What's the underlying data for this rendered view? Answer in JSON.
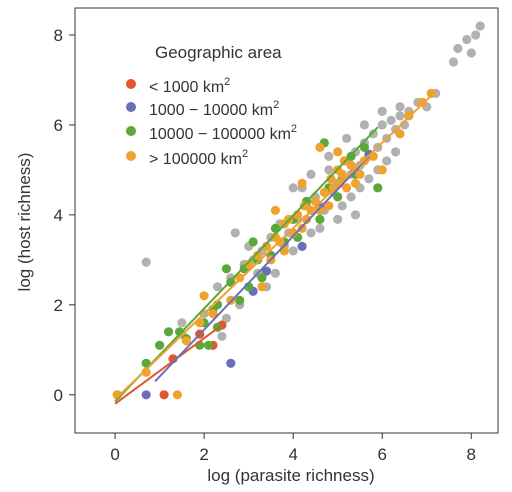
{
  "chart_data": {
    "type": "scatter",
    "xlabel": "log (parasite richness)",
    "ylabel": "log (host richness)",
    "xlim": [
      -0.9,
      8.6
    ],
    "ylim": [
      -0.85,
      8.6
    ],
    "xticks": [
      "0",
      "2",
      "4",
      "6",
      "8"
    ],
    "yticks": [
      "0",
      "2",
      "4",
      "6",
      "8"
    ],
    "grid": false,
    "legend": {
      "title": "Geographic area",
      "placement": "top-left",
      "entries": [
        {
          "label": "< 1000 km",
          "sup": "2",
          "color": "#e3562c"
        },
        {
          "label": "1000 − 10000 km",
          "sup": "2",
          "color": "#6b6fb8"
        },
        {
          "label": "10000 − 100000 km",
          "sup": "2",
          "color": "#5aa83a"
        },
        {
          "label": "> 100000 km",
          "sup": "2",
          "color": "#f0a22e"
        }
      ]
    },
    "series": [
      {
        "color": "#b1b1b1",
        "points": [
          [
            0.7,
            2.95
          ],
          [
            1.5,
            1.6
          ],
          [
            1.5,
            1.35
          ],
          [
            2.0,
            1.8
          ],
          [
            2.2,
            1.9
          ],
          [
            2.3,
            2.4
          ],
          [
            2.6,
            2.6
          ],
          [
            2.7,
            3.6
          ],
          [
            2.9,
            2.9
          ],
          [
            3.1,
            3.0
          ],
          [
            3.2,
            2.7
          ],
          [
            3.3,
            3.2
          ],
          [
            3.5,
            3.5
          ],
          [
            3.7,
            3.8
          ],
          [
            3.8,
            3.3
          ],
          [
            3.9,
            3.6
          ],
          [
            4.1,
            3.9
          ],
          [
            4.2,
            4.6
          ],
          [
            4.3,
            4.2
          ],
          [
            4.5,
            4.4
          ],
          [
            4.6,
            3.7
          ],
          [
            4.8,
            5.0
          ],
          [
            4.9,
            4.5
          ],
          [
            5.0,
            4.7
          ],
          [
            5.1,
            4.2
          ],
          [
            5.2,
            5.2
          ],
          [
            5.3,
            4.9
          ],
          [
            5.4,
            5.4
          ],
          [
            5.5,
            5.1
          ],
          [
            5.6,
            5.6
          ],
          [
            5.7,
            5.3
          ],
          [
            5.8,
            5.8
          ],
          [
            5.9,
            5.5
          ],
          [
            6.0,
            6.0
          ],
          [
            6.1,
            5.7
          ],
          [
            6.2,
            6.1
          ],
          [
            6.3,
            5.9
          ],
          [
            6.4,
            6.2
          ],
          [
            6.5,
            6.0
          ],
          [
            6.6,
            6.3
          ],
          [
            6.8,
            6.5
          ],
          [
            7.0,
            6.4
          ],
          [
            7.2,
            6.7
          ],
          [
            7.6,
            7.4
          ],
          [
            7.7,
            7.7
          ],
          [
            7.9,
            7.9
          ],
          [
            8.0,
            7.6
          ],
          [
            8.1,
            8.0
          ],
          [
            8.2,
            8.2
          ],
          [
            2.4,
            1.3
          ],
          [
            2.8,
            2.0
          ],
          [
            3.4,
            2.4
          ],
          [
            3.6,
            2.7
          ],
          [
            4.0,
            3.2
          ],
          [
            4.4,
            3.6
          ],
          [
            4.7,
            4.1
          ],
          [
            5.0,
            3.9
          ],
          [
            5.3,
            4.4
          ],
          [
            5.5,
            4.6
          ],
          [
            5.7,
            4.8
          ],
          [
            5.9,
            5.0
          ],
          [
            6.1,
            5.2
          ],
          [
            6.3,
            5.4
          ],
          [
            4.0,
            4.6
          ],
          [
            4.4,
            4.9
          ],
          [
            4.8,
            5.3
          ],
          [
            5.2,
            5.7
          ],
          [
            5.6,
            6.0
          ],
          [
            6.0,
            6.3
          ],
          [
            6.4,
            6.4
          ],
          [
            4.6,
            4.2
          ],
          [
            5.4,
            4.0
          ],
          [
            3.0,
            3.3
          ],
          [
            2.5,
            1.7
          ]
        ]
      },
      {
        "color": "#e3562c",
        "points": [
          [
            1.1,
            0.0
          ],
          [
            1.3,
            0.8
          ],
          [
            1.9,
            1.35
          ],
          [
            2.2,
            1.1
          ],
          [
            2.4,
            1.55
          ]
        ]
      },
      {
        "color": "#6b6fb8",
        "points": [
          [
            0.7,
            0.0
          ],
          [
            2.6,
            0.7
          ],
          [
            3.1,
            2.3
          ],
          [
            3.4,
            2.75
          ],
          [
            4.2,
            3.3
          ],
          [
            4.6,
            4.15
          ],
          [
            5.4,
            4.95
          ],
          [
            5.7,
            5.35
          ]
        ]
      },
      {
        "color": "#5aa83a",
        "points": [
          [
            0.05,
            0.0
          ],
          [
            0.7,
            0.7
          ],
          [
            1.0,
            1.1
          ],
          [
            1.45,
            1.4
          ],
          [
            1.6,
            1.25
          ],
          [
            1.9,
            1.1
          ],
          [
            2.0,
            1.6
          ],
          [
            2.1,
            1.1
          ],
          [
            2.2,
            1.9
          ],
          [
            2.3,
            1.5
          ],
          [
            2.5,
            2.8
          ],
          [
            2.6,
            2.5
          ],
          [
            2.8,
            2.1
          ],
          [
            2.9,
            2.8
          ],
          [
            3.0,
            2.4
          ],
          [
            3.1,
            3.4
          ],
          [
            3.2,
            3.0
          ],
          [
            3.3,
            2.6
          ],
          [
            3.5,
            3.1
          ],
          [
            3.6,
            3.7
          ],
          [
            3.8,
            3.4
          ],
          [
            4.0,
            3.9
          ],
          [
            4.1,
            3.5
          ],
          [
            4.3,
            4.3
          ],
          [
            4.6,
            3.9
          ],
          [
            4.7,
            5.6
          ],
          [
            4.8,
            4.6
          ],
          [
            5.0,
            4.4
          ],
          [
            5.1,
            4.8
          ],
          [
            5.3,
            5.3
          ],
          [
            5.4,
            4.9
          ],
          [
            5.6,
            5.5
          ],
          [
            5.9,
            4.6
          ],
          [
            2.3,
            2.0
          ],
          [
            1.2,
            1.4
          ]
        ]
      },
      {
        "color": "#f0a22e",
        "points": [
          [
            0.05,
            0.0
          ],
          [
            0.7,
            0.5
          ],
          [
            1.4,
            0.0
          ],
          [
            1.6,
            1.2
          ],
          [
            1.9,
            1.6
          ],
          [
            2.0,
            2.2
          ],
          [
            2.2,
            1.8
          ],
          [
            2.6,
            2.1
          ],
          [
            2.8,
            2.6
          ],
          [
            3.0,
            2.9
          ],
          [
            3.2,
            3.1
          ],
          [
            3.4,
            3.3
          ],
          [
            3.5,
            3.0
          ],
          [
            3.6,
            3.5
          ],
          [
            3.7,
            3.4
          ],
          [
            3.8,
            3.8
          ],
          [
            3.9,
            3.9
          ],
          [
            4.0,
            3.6
          ],
          [
            4.1,
            4.0
          ],
          [
            4.2,
            3.7
          ],
          [
            4.25,
            4.2
          ],
          [
            4.3,
            3.9
          ],
          [
            4.4,
            4.1
          ],
          [
            4.5,
            4.3
          ],
          [
            4.6,
            4.1
          ],
          [
            4.7,
            4.5
          ],
          [
            4.8,
            4.2
          ],
          [
            4.85,
            4.8
          ],
          [
            4.9,
            4.6
          ],
          [
            5.0,
            5.0
          ],
          [
            5.05,
            4.7
          ],
          [
            5.1,
            4.9
          ],
          [
            5.15,
            5.2
          ],
          [
            5.2,
            4.6
          ],
          [
            5.3,
            5.1
          ],
          [
            5.4,
            4.7
          ],
          [
            5.5,
            4.9
          ],
          [
            5.6,
            5.2
          ],
          [
            6.0,
            5.0
          ],
          [
            6.4,
            5.8
          ],
          [
            6.6,
            6.2
          ],
          [
            6.9,
            6.5
          ],
          [
            7.1,
            6.7
          ],
          [
            4.2,
            4.7
          ],
          [
            3.6,
            4.1
          ],
          [
            5.0,
            5.4
          ],
          [
            4.6,
            5.5
          ],
          [
            5.8,
            5.3
          ],
          [
            3.8,
            3.2
          ],
          [
            3.3,
            2.4
          ]
        ]
      }
    ],
    "fit_lines": [
      {
        "color": "#e3562c",
        "x": [
          0.0,
          2.4
        ],
        "y": [
          -0.2,
          1.55
        ]
      },
      {
        "color": "#6b6fb8",
        "x": [
          0.9,
          5.7
        ],
        "y": [
          0.3,
          5.3
        ]
      },
      {
        "color": "#5aa83a",
        "x": [
          0.0,
          5.9
        ],
        "y": [
          -0.15,
          5.95
        ]
      },
      {
        "color": "#f0a22e",
        "x": [
          0.0,
          7.1
        ],
        "y": [
          -0.1,
          6.65
        ]
      }
    ]
  }
}
